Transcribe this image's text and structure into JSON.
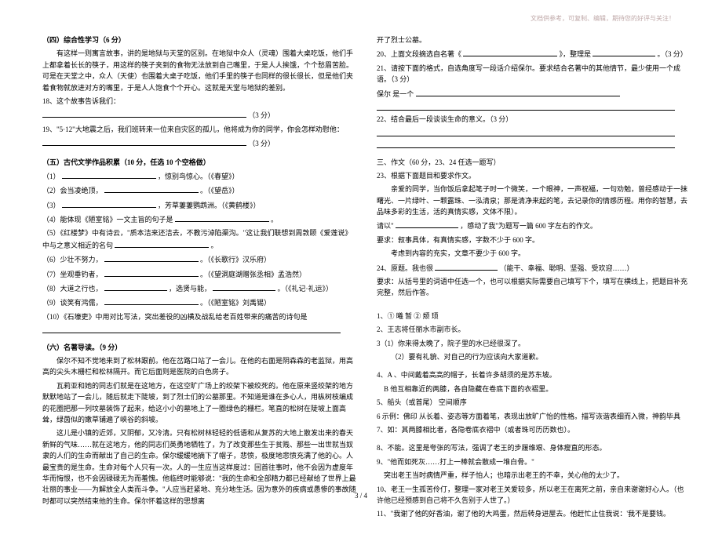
{
  "header_note": "文档供参考，可复制、编辑，期待您的好评与关注！",
  "left": {
    "sec4_title": "（四）综合性学习（6 分）",
    "sec4_para": "有这样一则寓言故事，讲的是地狱与天堂的区别。在地狱中众人（灵魂）围着大桌吃饭，他们手上都拿着长长的筷子，用这样的筷子夹到的食物无法放到自己嘴里，于是人人挨饿，个个愁眉苦脸。可是在天堂之中，众人（天使）也围着大桌子吃饭，他们手里的筷子也同样的很长很长，但是他们夹着食物就放进对方的嘴里，于是人人饱食个个开心。这就是天堂与地狱的差别。",
    "q18": "18、这个故事告诉我们：",
    "q18_pts": "（3 分）",
    "q19": "19、\"5·12\"大地震之后，我们班转来一位来自灾区的孤儿，他将成为你的同学，你会怎样劝慰他：",
    "q19_pts": "（3 分）",
    "sec5_title": "（五）古代文学作品积累（10 分，任选 10 个空格做）",
    "i1": "（1）",
    "i1_t": "，惊别鸟惊心。（《春望》）",
    "i2": "（2）会当凌绝顶，",
    "i2_t": "。（《望岳》）",
    "i3": "（3）",
    "i3_t": "，芳草萋萋鹦鹉洲。（《黄鹤楼》）",
    "i4": "（4）能体现《陋室铭》一文主旨的句子是",
    "i4_t": "。",
    "i5": "（5）《红楼梦》中有诗云，\"质本洁来还洁去，不教污淖陷渠沟。\"这让我们联想到周敦颐《爱莲说》中与之意义相近的名句",
    "i5_t": "。",
    "i6": "（6）少壮不努力，",
    "i6_t": "。（《长歌行》汉乐府）",
    "i7": "（7）坐观垂钓者，",
    "i7_t": "。（《望洞庭湖赠张丞相》孟浩然）",
    "i8": "（8）大道之行也，",
    "i8_t": "，选贤与能，",
    "i8_t2": "。（《礼记·礼运》）",
    "i9": "（9）谈笑有鸿儒，",
    "i9_t": "。（《陋室铭》刘禹锡）",
    "i10": "（10）《石壕吏》中用对比写法，突出差役的凶横及战乱给老百姓带来的痛苦的诗句是",
    "sec6_title": "（六）名著导读。（9 分）",
    "p6_1": "保尔不知不觉地来到了松林跟前。他在岔路口站了一会儿。在他的右面是阴森森的老监狱，用高高的尖头木栅栏和松林隔开。而它后面则是医院的白色房子。",
    "p6_2": "瓦莉亚和她的同志们就是在这地方，在这空旷广场上的绞架下被绞死的。他在原来竖绞架的地方默默地站了一会儿，随后就走下陡坡，到了烈士们的公墓那里。不知道是谁在多心人，用枞树枝编成的花圈把那一列坟墓装饰了起来，给这小小的墓地上了一圈绿色的栅栏。笔直的松树在陡坡上面高耸，绿茵似的嫩草铺遍了峡谷的斜坡。",
    "p6_3": "这儿是小镇的近郊，又阴郁，又冷清。只有松树林轻轻的低语和从复苏的大地上散发出来的春天新鲜的气味……就在这地方，他的同志们英勇地牺牲了，为了改变那些生于贫贱、那些一出世就当奴隶的人们的生命而献出了自己的生命。保尔缓缓地摘下了帽子，悲愤，极度地悲愤充满了他的心。人最宝贵的是生命。生命对每个人只有一次。人的一生应当这样度过：回首往事时，他不会因为虚度年华而悔恨，也不会因碌碌无为而羞愧。他临终时能够说：\"我的生命和全部精力都已经献给了世界上最壮丽的事业——为解放全人类而斗争。\"人应当赶紧地、充分地生活。因为意外的疾病或愚惨的事故随时都可以突然结束他的生命。保尔怀着这样的思想离",
    "note_end": ""
  },
  "right": {
    "r_top": "开了烈士公墓。",
    "q20": "20、上面文段摘选自名著《",
    "q20_t": "》，整理是",
    "q20_pts": "。（3 分）",
    "q21": "21、请按下面的格式，自选角度写一段话介绍保尔。要求结合名著中的其他情节，最少使用一个成语。（3 分）",
    "q21_2": "保尔 是一个",
    "q22": "22、结合最后一段谈谈生命的意义。（3 分）",
    "sec3_title": "三、作文（60 分，23、24 任选一题写）",
    "q23": "23、根据下面题目和要求作文。",
    "q23_p1": "亲爱的同学，当你饭后拿起笔子时一个微笑，一个眼神，一声祝福，一句劝勉，曾经感动于一抹曙光、一片绿叶、一颗露珠、一泓清泉；那是清净来起的笔，去记录你的情感历程。用你的智慧，去品味多彩的生活，活的真情实感，文体不限）。",
    "q23_p2": "请以\"",
    "q23_p2b": "，感动了我\"为题写一篇 600 字左右的作文。",
    "q23_req": "要求：叙事具体，有真情实感，字数不少于 600 字。",
    "q23_opt": "考虑到内容的充实，文章不要少于 600 字。",
    "q24": "24、原题。我也很",
    "q24_opt": "（能干、幸福、聪明、坚强、受欢迎……）",
    "q24_req": "要求：从括号里的词语中任选一个，也可以根据实际需要自己填写下个，填写在横线上，把题目补充完整，然后作答。",
    "ans_1": "1、① 曦    暂  ② 颓    顼",
    "ans_2": "2、王志将任丽水市副市长。",
    "ans_3_1": "3（1）你来得太晚了，院子里的水已经很深了。",
    "ans_3_2": "（2）要有礼貌、对自己的行为应该向大家道歉。",
    "ans_4": "4、A 、中间戴着高高的帽子，长着许多胡须的是苏东坡。",
    "ans_4b": "B    他互相靠近的两膝，各自隐藏在卷底下面的衣褶里。",
    "ans_5": "5、船头（或首尾）    空间顺序",
    "ans_6": "6 示例：佛印  从长着、姿态等方面着笔，表现出放旷广怡的性格。描写诙谐表细而入微，神韵毕具",
    "ans_7": "7、如：其两膝相比者，各隐卷底衣褶中（或者珠可历历数也）。",
    "ans_8": "8、不能。这里是夸张的写法，强调了老王的步履维艰、身体瘦直的形态。",
    "ans_9": "9、\"他而如死灰……打上一棒就会散成一堆白骨。\"",
    "ans_9b": "突出老王当时病情严重，样子怕人；也暗示出老王的不幸，关心他的太少了。",
    "ans_10": "10、老王一生孤苦伶仃，整理一家对老王关爱较多，所以老王在离死之前，亲自来谢谢好心人。（也许他已经预感到自己将不久告别于人世了。）",
    "ans_11": "11、\"我谢了他的好香油，谢了他的大鸡蛋，然后转身进屋去。他赶忙止住我说：'我不是要钱。"
  },
  "footer": "3 / 4"
}
